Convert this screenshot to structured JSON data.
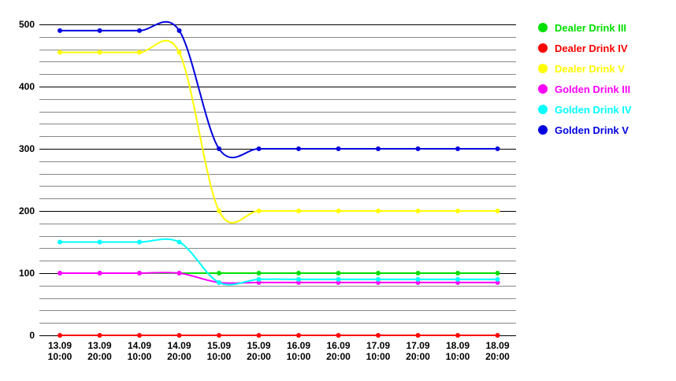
{
  "chart_data": {
    "type": "line",
    "title": "",
    "xlabel": "",
    "ylabel": "",
    "ylim": [
      0,
      500
    ],
    "y_ticks": [
      "0",
      "100",
      "200",
      "300",
      "400",
      "500"
    ],
    "minor_step": 20,
    "categories": [
      [
        "13.09",
        "10:00"
      ],
      [
        "13.09",
        "20:00"
      ],
      [
        "14.09",
        "10:00"
      ],
      [
        "14.09",
        "20:00"
      ],
      [
        "15.09",
        "10:00"
      ],
      [
        "15.09",
        "20:00"
      ],
      [
        "16.09",
        "10:00"
      ],
      [
        "16.09",
        "20:00"
      ],
      [
        "17.09",
        "10:00"
      ],
      [
        "17.09",
        "20:00"
      ],
      [
        "18.09",
        "10:00"
      ],
      [
        "18.09",
        "20:00"
      ]
    ],
    "series": [
      {
        "name": "Dealer Drink III",
        "color": "#00e000",
        "values": [
          100,
          100,
          100,
          100,
          100,
          100,
          100,
          100,
          100,
          100,
          100,
          100
        ]
      },
      {
        "name": "Dealer Drink IV",
        "color": "#ff0000",
        "values": [
          0,
          0,
          0,
          0,
          0,
          0,
          0,
          0,
          0,
          0,
          0,
          0
        ]
      },
      {
        "name": "Dealer Drink V",
        "color": "#ffff00",
        "values": [
          455,
          455,
          455,
          455,
          200,
          200,
          200,
          200,
          200,
          200,
          200,
          200
        ]
      },
      {
        "name": "Golden Drink III",
        "color": "#ff00ff",
        "values": [
          100,
          100,
          100,
          100,
          85,
          85,
          85,
          85,
          85,
          85,
          85,
          85
        ]
      },
      {
        "name": "Golden Drink IV",
        "color": "#00ffff",
        "values": [
          150,
          150,
          150,
          150,
          85,
          90,
          90,
          90,
          90,
          90,
          90,
          90
        ]
      },
      {
        "name": "Golden Drink V",
        "color": "#0000e0",
        "values": [
          490,
          490,
          490,
          490,
          300,
          300,
          300,
          300,
          300,
          300,
          300,
          300
        ]
      }
    ],
    "legend_position": "right",
    "grid": true
  }
}
